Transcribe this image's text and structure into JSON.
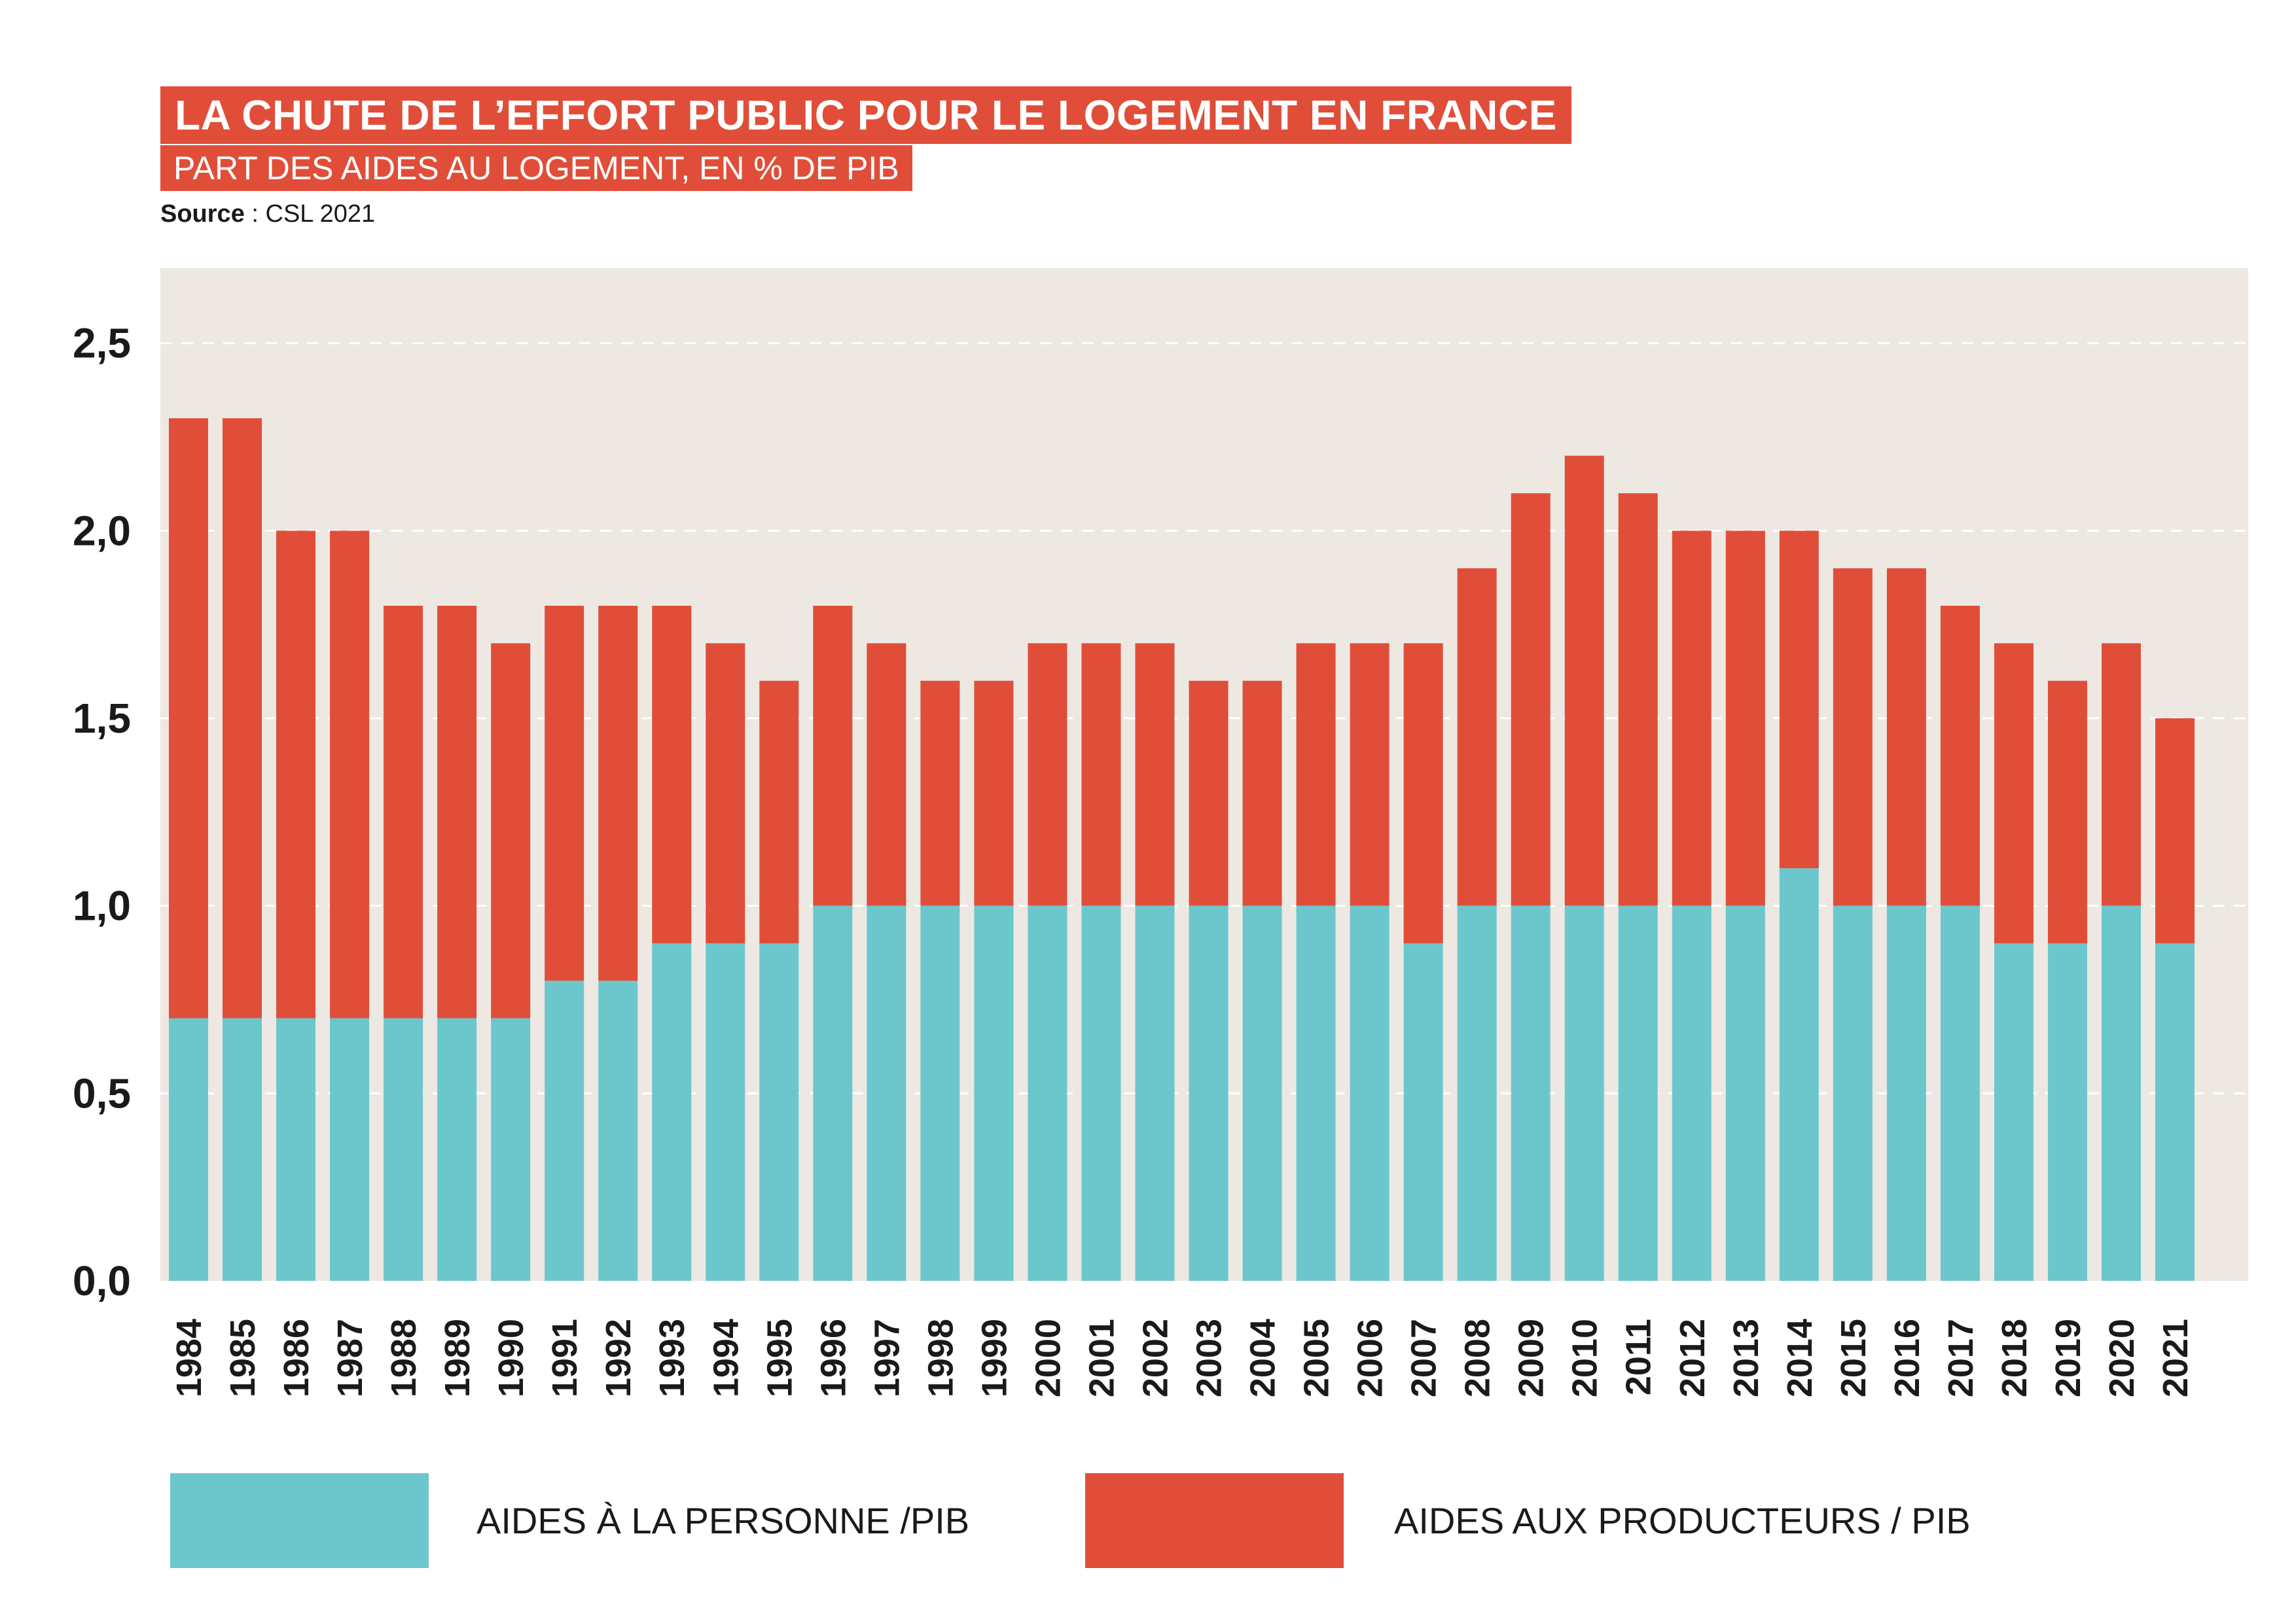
{
  "title": "LA CHUTE DE L’EFFORT PUBLIC POUR LE LOGEMENT EN FRANCE",
  "subtitle": "PART DES AIDES AU LOGEMENT, EN % DE PIB",
  "source_label": "Source",
  "source_text": " : CSL 2021",
  "colors": {
    "personne": "#6cc7cd",
    "producteurs": "#e04e39",
    "plot_bg": "#ede8e2",
    "accent": "#e04e39"
  },
  "chart_data": {
    "type": "bar",
    "stacked": true,
    "categories": [
      "1984",
      "1985",
      "1986",
      "1987",
      "1988",
      "1989",
      "1990",
      "1991",
      "1992",
      "1993",
      "1994",
      "1995",
      "1996",
      "1997",
      "1998",
      "1999",
      "2000",
      "2001",
      "2002",
      "2003",
      "2004",
      "2005",
      "2006",
      "2007",
      "2008",
      "2009",
      "2010",
      "2011",
      "2012",
      "2013",
      "2014",
      "2015",
      "2016",
      "2017",
      "2018",
      "2019",
      "2020",
      "2021"
    ],
    "series": [
      {
        "name": "AIDES À LA PERSONNE /PIB",
        "values": [
          0.7,
          0.7,
          0.7,
          0.7,
          0.7,
          0.7,
          0.7,
          0.8,
          0.8,
          0.9,
          0.9,
          0.9,
          1.0,
          1.0,
          1.0,
          1.0,
          1.0,
          1.0,
          1.0,
          1.0,
          1.0,
          1.0,
          1.0,
          0.9,
          1.0,
          1.0,
          1.0,
          1.0,
          1.0,
          1.0,
          1.1,
          1.0,
          1.0,
          1.0,
          0.9,
          0.9,
          1.0,
          0.9
        ]
      },
      {
        "name": "AIDES AUX PRODUCTEURS / PIB",
        "values": [
          1.6,
          1.6,
          1.3,
          1.3,
          1.1,
          1.1,
          1.0,
          1.0,
          1.0,
          0.9,
          0.8,
          0.7,
          0.8,
          0.7,
          0.6,
          0.6,
          0.7,
          0.7,
          0.7,
          0.6,
          0.6,
          0.7,
          0.7,
          0.8,
          0.9,
          1.1,
          1.2,
          1.1,
          1.0,
          1.0,
          0.9,
          0.9,
          0.9,
          0.8,
          0.8,
          0.7,
          0.7,
          0.6
        ]
      }
    ],
    "ylim": [
      0,
      2.7
    ],
    "yticks": [
      "0,0",
      "0,5",
      "1,0",
      "1,5",
      "2,0",
      "2,5"
    ],
    "ytick_values": [
      0,
      0.5,
      1.0,
      1.5,
      2.0,
      2.5
    ],
    "grid": true,
    "legend_position": "bottom"
  }
}
